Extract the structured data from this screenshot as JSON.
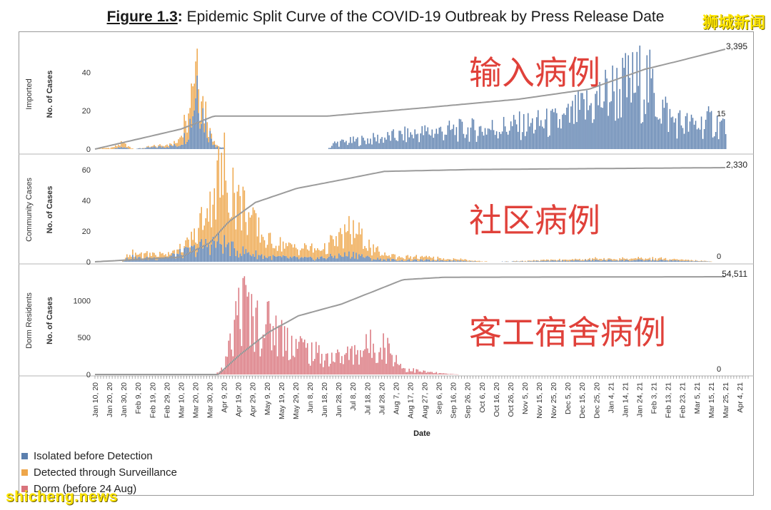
{
  "header": {
    "figure_label": "Figure 1.3",
    "colon": ":",
    "title_text": " Epidemic Split Curve of the COVID-19 Outbreak by Press Release Date",
    "brand": "狮城新闻"
  },
  "watermark": "shicheng.news",
  "colors": {
    "isolated": "#5b7fae",
    "surveillance": "#eea64a",
    "dorm": "#d9737b",
    "cumulative_line": "#9b9b9b",
    "annotation": "#e0413a"
  },
  "legend": [
    {
      "label": "Isolated before Detection",
      "color": "#5b7fae"
    },
    {
      "label": "Detected through Surveillance",
      "color": "#eea64a"
    },
    {
      "label": "Dorm (before 24 Aug)",
      "color": "#d9737b"
    }
  ],
  "chart_data": {
    "type": "bar",
    "title": "Epidemic Split Curve of the COVID-19 Outbreak by Press Release Date",
    "xlabel": "Date",
    "x_ticks": [
      "Jan 10, 20",
      "Jan 20, 20",
      "Jan 30, 20",
      "Feb 9, 20",
      "Feb 19, 20",
      "Feb 29, 20",
      "Mar 10, 20",
      "Mar 20, 20",
      "Mar 30, 20",
      "Apr 9, 20",
      "Apr 19, 20",
      "Apr 29, 20",
      "May 9, 20",
      "May 19, 20",
      "May 29, 20",
      "Jun 8, 20",
      "Jun 18, 20",
      "Jun 28, 20",
      "Jul 8, 20",
      "Jul 18, 20",
      "Jul 28, 20",
      "Aug 7, 20",
      "Aug 17, 20",
      "Aug 27, 20",
      "Sep 6, 20",
      "Sep 16, 20",
      "Sep 26, 20",
      "Oct 6, 20",
      "Oct 16, 20",
      "Oct 26, 20",
      "Nov 5, 20",
      "Nov 15, 20",
      "Nov 25, 20",
      "Dec 5, 20",
      "Dec 15, 20",
      "Dec 25, 20",
      "Jan 4, 21",
      "Jan 14, 21",
      "Jan 24, 21",
      "Feb 3, 21",
      "Feb 13, 21",
      "Feb 23, 21",
      "Mar 5, 21",
      "Mar 15, 21",
      "Mar 25, 21",
      "Apr 4, 21"
    ],
    "panels": [
      {
        "name": "imported",
        "title_label": "Imported",
        "ylabel": "No. of Cases",
        "yticks": [
          0,
          20,
          40
        ],
        "ylim": [
          0,
          55
        ],
        "total_label": "3,395",
        "last_value_label": "15",
        "annotation": "输入病例",
        "series": [
          {
            "name": "Isolated before Detection",
            "anchors": [
              [
                "Jan 10, 20",
                0
              ],
              [
                "Jan 22, 20",
                0
              ],
              [
                "Jan 28, 20",
                1
              ],
              [
                "Feb 5, 20",
                0
              ],
              [
                "Mar 8, 20",
                2
              ],
              [
                "Mar 14, 20",
                8
              ],
              [
                "Mar 18, 20",
                20
              ],
              [
                "Mar 21, 20",
                38
              ],
              [
                "Mar 24, 20",
                22
              ],
              [
                "Mar 28, 20",
                10
              ],
              [
                "Apr 3, 20",
                2
              ],
              [
                "Apr 10, 20",
                0
              ],
              [
                "Jun 20, 20",
                0
              ],
              [
                "Jun 25, 20",
                3
              ],
              [
                "Aug 1, 20",
                6
              ],
              [
                "Sep 1, 20",
                9
              ],
              [
                "Oct 1, 20",
                10
              ],
              [
                "Nov 1, 20",
                12
              ],
              [
                "Dec 1, 20",
                14
              ],
              [
                "Dec 20, 20",
                22
              ],
              [
                "Jan 5, 21",
                30
              ],
              [
                "Jan 20, 21",
                33
              ],
              [
                "Jan 28, 21",
                36
              ],
              [
                "Feb 3, 21",
                28
              ],
              [
                "Feb 15, 21",
                15
              ],
              [
                "Mar 1, 21",
                12
              ],
              [
                "Mar 15, 21",
                14
              ],
              [
                "Mar 25, 21",
                12
              ]
            ]
          },
          {
            "name": "Detected through Surveillance",
            "anchors": [
              [
                "Jan 10, 20",
                0
              ],
              [
                "Jan 24, 20",
                1
              ],
              [
                "Jan 29, 20",
                2
              ],
              [
                "Feb 6, 20",
                0
              ],
              [
                "Mar 5, 20",
                1
              ],
              [
                "Mar 12, 20",
                6
              ],
              [
                "Mar 17, 20",
                14
              ],
              [
                "Mar 20, 20",
                17
              ],
              [
                "Mar 24, 20",
                9
              ],
              [
                "Mar 30, 20",
                3
              ],
              [
                "Apr 5, 20",
                0
              ],
              [
                "Apr 10, 21",
                0
              ]
            ]
          }
        ],
        "cumulative_anchors": [
          [
            "Jan 10, 20",
            0
          ],
          [
            "Mar 10, 20",
            0.2
          ],
          [
            "Apr 2, 20",
            0.33
          ],
          [
            "Jun 20, 20",
            0.33
          ],
          [
            "Sep 1, 20",
            0.42
          ],
          [
            "Nov 1, 20",
            0.5
          ],
          [
            "Dec 20, 20",
            0.6
          ],
          [
            "Jan 28, 21",
            0.8
          ],
          [
            "Feb 20, 21",
            0.88
          ],
          [
            "Mar 25, 21",
            1.0
          ]
        ]
      },
      {
        "name": "community",
        "title_label": "Community Cases",
        "ylabel": "No. of Cases",
        "yticks": [
          0,
          20,
          40,
          60
        ],
        "ylim": [
          0,
          65
        ],
        "total_label": "2,330",
        "last_value_label": "0",
        "annotation": "社区病例",
        "series": [
          {
            "name": "Isolated before Detection",
            "anchors": [
              [
                "Jan 10, 20",
                0
              ],
              [
                "Jan 28, 20",
                0
              ],
              [
                "Feb 3, 20",
                3
              ],
              [
                "Feb 12, 20",
                2
              ],
              [
                "Mar 1, 20",
                3
              ],
              [
                "Mar 20, 20",
                8
              ],
              [
                "Mar 30, 20",
                12
              ],
              [
                "Apr 8, 20",
                12
              ],
              [
                "Apr 15, 20",
                8
              ],
              [
                "Apr 25, 20",
                6
              ],
              [
                "May 10, 20",
                3
              ],
              [
                "Jun 10, 20",
                2
              ],
              [
                "Jul 10, 20",
                5
              ],
              [
                "Jul 20, 20",
                2
              ],
              [
                "Aug 10, 20",
                1
              ],
              [
                "Sep 10, 20",
                1
              ],
              [
                "Oct 10, 20",
                0
              ],
              [
                "Dec 25, 20",
                1
              ],
              [
                "Feb 5, 21",
                1
              ],
              [
                "Mar 20, 21",
                0
              ]
            ]
          },
          {
            "name": "Detected through Surveillance",
            "anchors": [
              [
                "Jan 10, 20",
                0
              ],
              [
                "Jan 28, 20",
                0
              ],
              [
                "Feb 3, 20",
                2
              ],
              [
                "Feb 20, 20",
                3
              ],
              [
                "Mar 10, 20",
                2
              ],
              [
                "Mar 20, 20",
                8
              ],
              [
                "Mar 30, 20",
                28
              ],
              [
                "Apr 8, 20",
                45
              ],
              [
                "Apr 15, 20",
                38
              ],
              [
                "Apr 22, 20",
                30
              ],
              [
                "Apr 29, 20",
                20
              ],
              [
                "May 9, 20",
                10
              ],
              [
                "May 29, 20",
                6
              ],
              [
                "Jun 18, 20",
                6
              ],
              [
                "Jul 8, 20",
                16
              ],
              [
                "Jul 18, 20",
                8
              ],
              [
                "Jul 28, 20",
                3
              ],
              [
                "Aug 17, 20",
                2
              ],
              [
                "Sep 16, 20",
                1
              ],
              [
                "Oct 16, 20",
                0
              ],
              [
                "Dec 25, 20",
                1
              ],
              [
                "Feb 5, 21",
                1
              ],
              [
                "Mar 20, 21",
                0
              ]
            ]
          }
        ],
        "cumulative_anchors": [
          [
            "Jan 10, 20",
            0
          ],
          [
            "Mar 10, 20",
            0.05
          ],
          [
            "Mar 30, 20",
            0.2
          ],
          [
            "Apr 12, 20",
            0.42
          ],
          [
            "May 1, 20",
            0.63
          ],
          [
            "May 30, 20",
            0.78
          ],
          [
            "Jun 30, 20",
            0.87
          ],
          [
            "Jul 30, 20",
            0.96
          ],
          [
            "Sep 30, 20",
            0.98
          ],
          [
            "Mar 25, 21",
            1.0
          ]
        ]
      },
      {
        "name": "dorm",
        "title_label": "Dorm Residents",
        "ylabel": "No. of Cases",
        "yticks": [
          0,
          500,
          1000
        ],
        "ylim": [
          0,
          1400
        ],
        "total_label": "54,511",
        "last_value_label": "0",
        "annotation": "客工宿舍病例",
        "series": [
          {
            "name": "Dorm (before 24 Aug)",
            "anchors": [
              [
                "Jan 10, 20",
                0
              ],
              [
                "Apr 1, 20",
                0
              ],
              [
                "Apr 6, 20",
                30
              ],
              [
                "Apr 10, 20",
                150
              ],
              [
                "Apr 15, 20",
                500
              ],
              [
                "Apr 20, 20",
                950
              ],
              [
                "Apr 25, 20",
                850
              ],
              [
                "May 1, 20",
                700
              ],
              [
                "May 10, 20",
                650
              ],
              [
                "May 20, 20",
                520
              ],
              [
                "Jun 1, 20",
                380
              ],
              [
                "Jun 10, 20",
                280
              ],
              [
                "Jun 20, 20",
                230
              ],
              [
                "Jul 1, 20",
                230
              ],
              [
                "Jul 10, 20",
                300
              ],
              [
                "Jul 20, 20",
                380
              ],
              [
                "Jul 28, 20",
                420
              ],
              [
                "Aug 5, 20",
                260
              ],
              [
                "Aug 12, 20",
                80
              ],
              [
                "Aug 24, 20",
                40
              ],
              [
                "Sep 10, 20",
                10
              ],
              [
                "Sep 20, 20",
                0
              ],
              [
                "Apr 10, 21",
                0
              ]
            ]
          }
        ],
        "cumulative_anchors": [
          [
            "Jan 10, 20",
            0
          ],
          [
            "Apr 5, 20",
            0
          ],
          [
            "Apr 20, 20",
            0.2
          ],
          [
            "May 10, 20",
            0.43
          ],
          [
            "May 31, 20",
            0.6
          ],
          [
            "Jun 30, 20",
            0.72
          ],
          [
            "Jul 31, 20",
            0.9
          ],
          [
            "Aug 12, 20",
            0.97
          ],
          [
            "Sep 10, 20",
            0.995
          ],
          [
            "Mar 25, 21",
            1.0
          ]
        ]
      }
    ]
  }
}
